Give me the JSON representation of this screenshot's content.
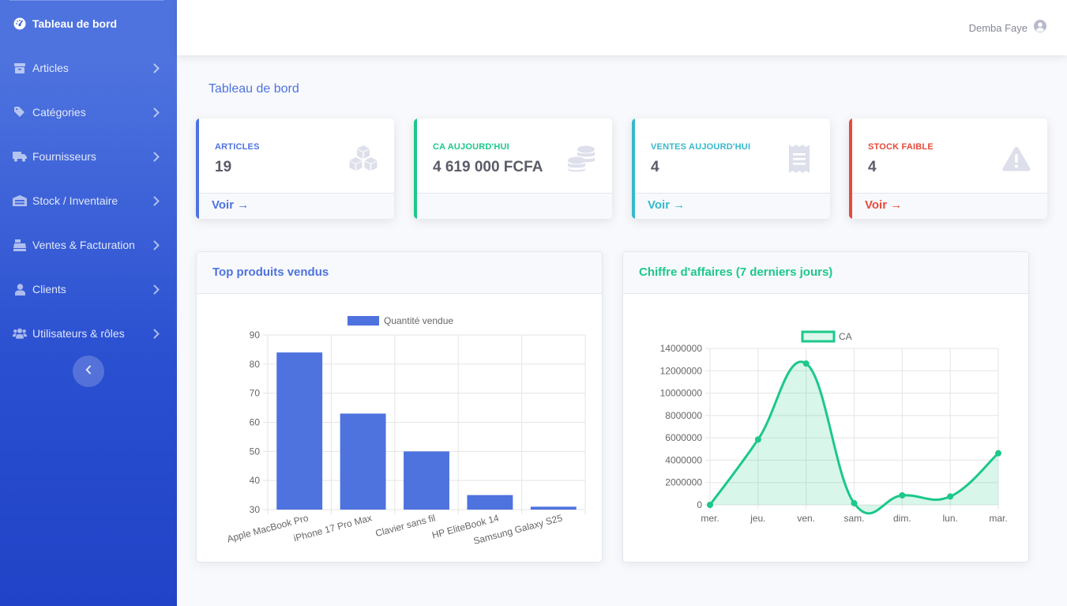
{
  "sidebar": {
    "items": [
      {
        "label": "Tableau de bord",
        "icon": "dashboard-icon"
      },
      {
        "label": "Articles",
        "icon": "box-icon"
      },
      {
        "label": "Catégories",
        "icon": "tag-icon"
      },
      {
        "label": "Fournisseurs",
        "icon": "truck-icon"
      },
      {
        "label": "Stock / Inventaire",
        "icon": "warehouse-icon"
      },
      {
        "label": "Ventes & Facturation",
        "icon": "cash-register-icon"
      },
      {
        "label": "Clients",
        "icon": "user-icon"
      },
      {
        "label": "Utilisateurs & rôles",
        "icon": "users-icon"
      }
    ]
  },
  "topbar": {
    "user_name": "Demba Faye"
  },
  "page": {
    "title": "Tableau de bord"
  },
  "cards": [
    {
      "label": "Articles",
      "value": "19",
      "link": "Voir →",
      "color": "#4e73df",
      "icon": "cubes-icon"
    },
    {
      "label": "CA aujourd'hui",
      "value": "4 619 000 FCFA",
      "link": "",
      "color": "#1cc88a",
      "icon": "coins-icon"
    },
    {
      "label": "Ventes aujourd'hui",
      "value": "4",
      "link": "Voir →",
      "color": "#36b9cc",
      "icon": "receipt-icon"
    },
    {
      "label": "Stock faible",
      "value": "4",
      "link": "Voir →",
      "color": "#e74a3b",
      "icon": "warning-icon"
    }
  ],
  "panels": {
    "top_products": {
      "title": "Top produits vendus",
      "color": "#4e73df"
    },
    "revenue": {
      "title": "Chiffre d'affaires (7 derniers jours)",
      "color": "#1cc88a"
    }
  },
  "chart_data": [
    {
      "type": "bar",
      "title": "Top produits vendus",
      "legend": "Quantité vendue",
      "categories": [
        "Apple MacBook Pro",
        "iPhone 17 Pro Max",
        "Clavier sans fil",
        "HP EliteBook 14",
        "Samsung Galaxy S25"
      ],
      "values": [
        84,
        63,
        50,
        35,
        31
      ],
      "ylim": [
        30,
        90
      ],
      "yticks": [
        30,
        40,
        50,
        60,
        70,
        80,
        90
      ],
      "color": "#4e73df"
    },
    {
      "type": "line",
      "title": "Chiffre d'affaires (7 derniers jours)",
      "legend": "CA",
      "categories": [
        "mer.",
        "jeu.",
        "ven.",
        "sam.",
        "dim.",
        "lun.",
        "mar."
      ],
      "values": [
        0,
        5850000,
        12650000,
        150000,
        850000,
        750000,
        4619000
      ],
      "ylim": [
        0,
        14000000
      ],
      "yticks": [
        0,
        2000000,
        4000000,
        6000000,
        8000000,
        10000000,
        12000000,
        14000000
      ],
      "color": "#1cc88a",
      "fill": true
    }
  ]
}
